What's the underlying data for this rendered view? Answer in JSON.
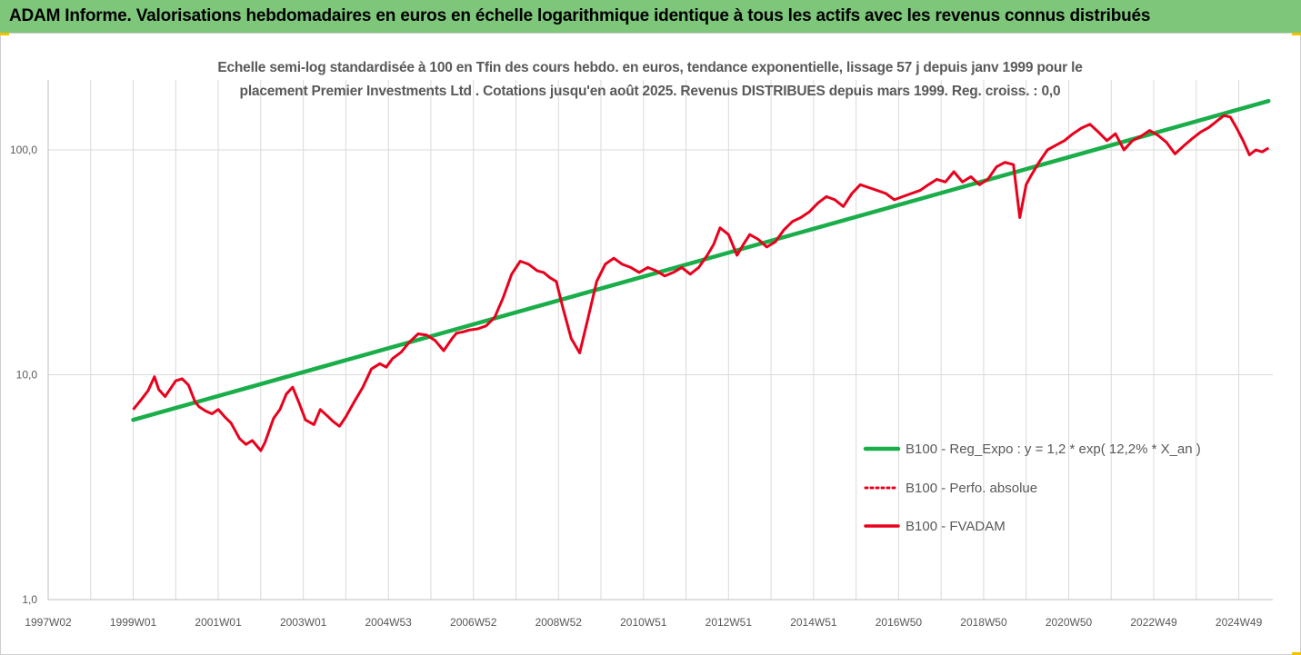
{
  "banner": {
    "title": "ADAM Informe. Valorisations hebdomadaires en euros en échelle logarithmique identique à tous les actifs avec les revenus connus distribués"
  },
  "colors": {
    "banner_bg": "#7dc67a",
    "trend": "#1aae4a",
    "fvadam": "#e8001c",
    "perfo": "#e8001c",
    "grid": "#d9d9d9",
    "text": "#595959"
  },
  "chart_data": {
    "type": "line",
    "title": "Echelle semi-log standardisée à 100 en Tfin des cours hebdo. en euros, tendance exponentielle, lissage 57 j depuis janv 1999 pour le placement Premier Investments Ltd . Cotations jusqu'en août 2025. Revenus DISTRIBUES depuis mars 1999. Reg. croiss. : 0,0",
    "title_line1": "Echelle semi-log standardisée à 100 en Tfin des cours hebdo. en euros, tendance exponentielle, lissage 57 j depuis janv 1999 pour le",
    "title_line2": "placement Premier Investments Ltd . Cotations jusqu'en août 2025. Revenus DISTRIBUES depuis mars 1999. Reg. croiss. : 0,0",
    "y_scale": "log",
    "ylim": [
      1,
      180
    ],
    "y_ticks": [
      1,
      10,
      100
    ],
    "y_tick_labels": [
      "1,0",
      "10,0",
      "100,0"
    ],
    "x_range": [
      1997.0,
      2025.8
    ],
    "x_ticks": [
      {
        "x": 1997.0,
        "label": "1997W02"
      },
      {
        "x": 1999.0,
        "label": "1999W01"
      },
      {
        "x": 2001.0,
        "label": "2001W01"
      },
      {
        "x": 2003.0,
        "label": "2003W01"
      },
      {
        "x": 2005.0,
        "label": "2004W53"
      },
      {
        "x": 2007.0,
        "label": "2006W52"
      },
      {
        "x": 2009.0,
        "label": "2008W52"
      },
      {
        "x": 2011.0,
        "label": "2010W51"
      },
      {
        "x": 2013.0,
        "label": "2012W51"
      },
      {
        "x": 2015.0,
        "label": "2014W51"
      },
      {
        "x": 2017.0,
        "label": "2016W50"
      },
      {
        "x": 2019.0,
        "label": "2018W50"
      },
      {
        "x": 2021.0,
        "label": "2020W50"
      },
      {
        "x": 2023.0,
        "label": "2022W49"
      },
      {
        "x": 2025.0,
        "label": "2024W49"
      }
    ],
    "grid": "vertical",
    "legend_position": "right",
    "series": [
      {
        "name": "B100 - Reg_Expo : y = 1,2 * exp( 12,2% *  X_an )",
        "style": "solid-green",
        "x": [
          1999.0,
          2025.7
        ],
        "values": [
          6.3,
          165
        ]
      },
      {
        "name": "B100 - Perfo. absolue",
        "style": "dotted-red",
        "x": [],
        "values": []
      },
      {
        "name": "B100 - FVADAM",
        "style": "solid-red",
        "x": [
          1999.0,
          1999.2,
          1999.35,
          1999.5,
          1999.6,
          1999.75,
          1999.9,
          2000.0,
          2000.15,
          2000.3,
          2000.45,
          2000.55,
          2000.7,
          2000.85,
          2001.0,
          2001.15,
          2001.3,
          2001.5,
          2001.65,
          2001.8,
          2002.0,
          2002.1,
          2002.3,
          2002.45,
          2002.6,
          2002.75,
          2002.9,
          2003.05,
          2003.25,
          2003.4,
          2003.55,
          2003.7,
          2003.85,
          2004.0,
          2004.2,
          2004.4,
          2004.6,
          2004.8,
          2004.95,
          2005.1,
          2005.3,
          2005.5,
          2005.7,
          2005.9,
          2006.1,
          2006.3,
          2006.5,
          2006.6,
          2006.75,
          2006.9,
          2007.1,
          2007.3,
          2007.5,
          2007.7,
          2007.9,
          2008.1,
          2008.3,
          2008.5,
          2008.65,
          2008.8,
          2008.95,
          2009.1,
          2009.3,
          2009.5,
          2009.7,
          2009.9,
          2010.1,
          2010.3,
          2010.5,
          2010.7,
          2010.9,
          2011.1,
          2011.3,
          2011.5,
          2011.7,
          2011.9,
          2012.1,
          2012.3,
          2012.5,
          2012.65,
          2012.8,
          2013.0,
          2013.2,
          2013.35,
          2013.5,
          2013.7,
          2013.9,
          2014.1,
          2014.3,
          2014.5,
          2014.7,
          2014.9,
          2015.1,
          2015.3,
          2015.5,
          2015.7,
          2015.9,
          2016.1,
          2016.3,
          2016.5,
          2016.7,
          2016.9,
          2017.1,
          2017.3,
          2017.5,
          2017.7,
          2017.9,
          2018.1,
          2018.3,
          2018.5,
          2018.7,
          2018.9,
          2019.1,
          2019.3,
          2019.5,
          2019.7,
          2019.85,
          2020.0,
          2020.1,
          2020.3,
          2020.5,
          2020.7,
          2020.9,
          2021.1,
          2021.3,
          2021.5,
          2021.7,
          2021.9,
          2022.1,
          2022.3,
          2022.5,
          2022.7,
          2022.9,
          2023.1,
          2023.3,
          2023.5,
          2023.7,
          2023.9,
          2024.1,
          2024.3,
          2024.5,
          2024.65,
          2024.8,
          2024.95,
          2025.1,
          2025.25,
          2025.4,
          2025.55,
          2025.7
        ],
        "values": [
          7.0,
          7.8,
          8.5,
          9.8,
          8.6,
          8.0,
          8.8,
          9.4,
          9.6,
          9.0,
          7.6,
          7.2,
          6.9,
          6.7,
          7.0,
          6.5,
          6.1,
          5.2,
          4.9,
          5.1,
          4.6,
          5.0,
          6.4,
          7.0,
          8.2,
          8.8,
          7.5,
          6.3,
          6.0,
          7.0,
          6.6,
          6.2,
          5.9,
          6.5,
          7.6,
          8.8,
          10.6,
          11.2,
          10.8,
          11.8,
          12.6,
          14.0,
          15.2,
          15.0,
          14.2,
          12.8,
          14.5,
          15.3,
          15.5,
          15.8,
          16.0,
          16.5,
          18.0,
          22.0,
          28.0,
          32.0,
          31.0,
          29.0,
          28.5,
          27.0,
          26.0,
          20.0,
          14.5,
          12.5,
          18.0,
          26.0,
          31.0,
          33.0,
          31.0,
          30.0,
          28.5,
          30.0,
          29.0,
          27.5,
          28.5,
          30.0,
          28.0,
          30.0,
          34.0,
          38.0,
          45.0,
          42.0,
          34.0,
          38.0,
          42.0,
          40.0,
          37.0,
          39.0,
          44.0,
          48.0,
          50.0,
          53.0,
          58.0,
          62.0,
          60.0,
          56.0,
          64.0,
          70.0,
          68.0,
          66.0,
          64.0,
          60.0,
          62.0,
          64.0,
          66.0,
          70.0,
          74.0,
          72.0,
          80.0,
          72.0,
          76.0,
          70.0,
          74.0,
          84.0,
          88.0,
          86.0,
          50.0,
          70.0,
          76.0,
          88.0,
          100.0,
          105.0,
          110.0,
          118.0,
          125.0,
          130.0,
          120.0,
          110.0,
          118.0,
          100.0,
          110.0,
          115.0,
          122.0,
          116.0,
          108.0,
          96.0,
          104.0,
          112.0,
          120.0,
          126.0,
          135.0,
          142.0,
          140.0,
          125.0,
          110.0,
          95.0,
          100.0,
          98.0,
          102.0
        ]
      }
    ]
  }
}
